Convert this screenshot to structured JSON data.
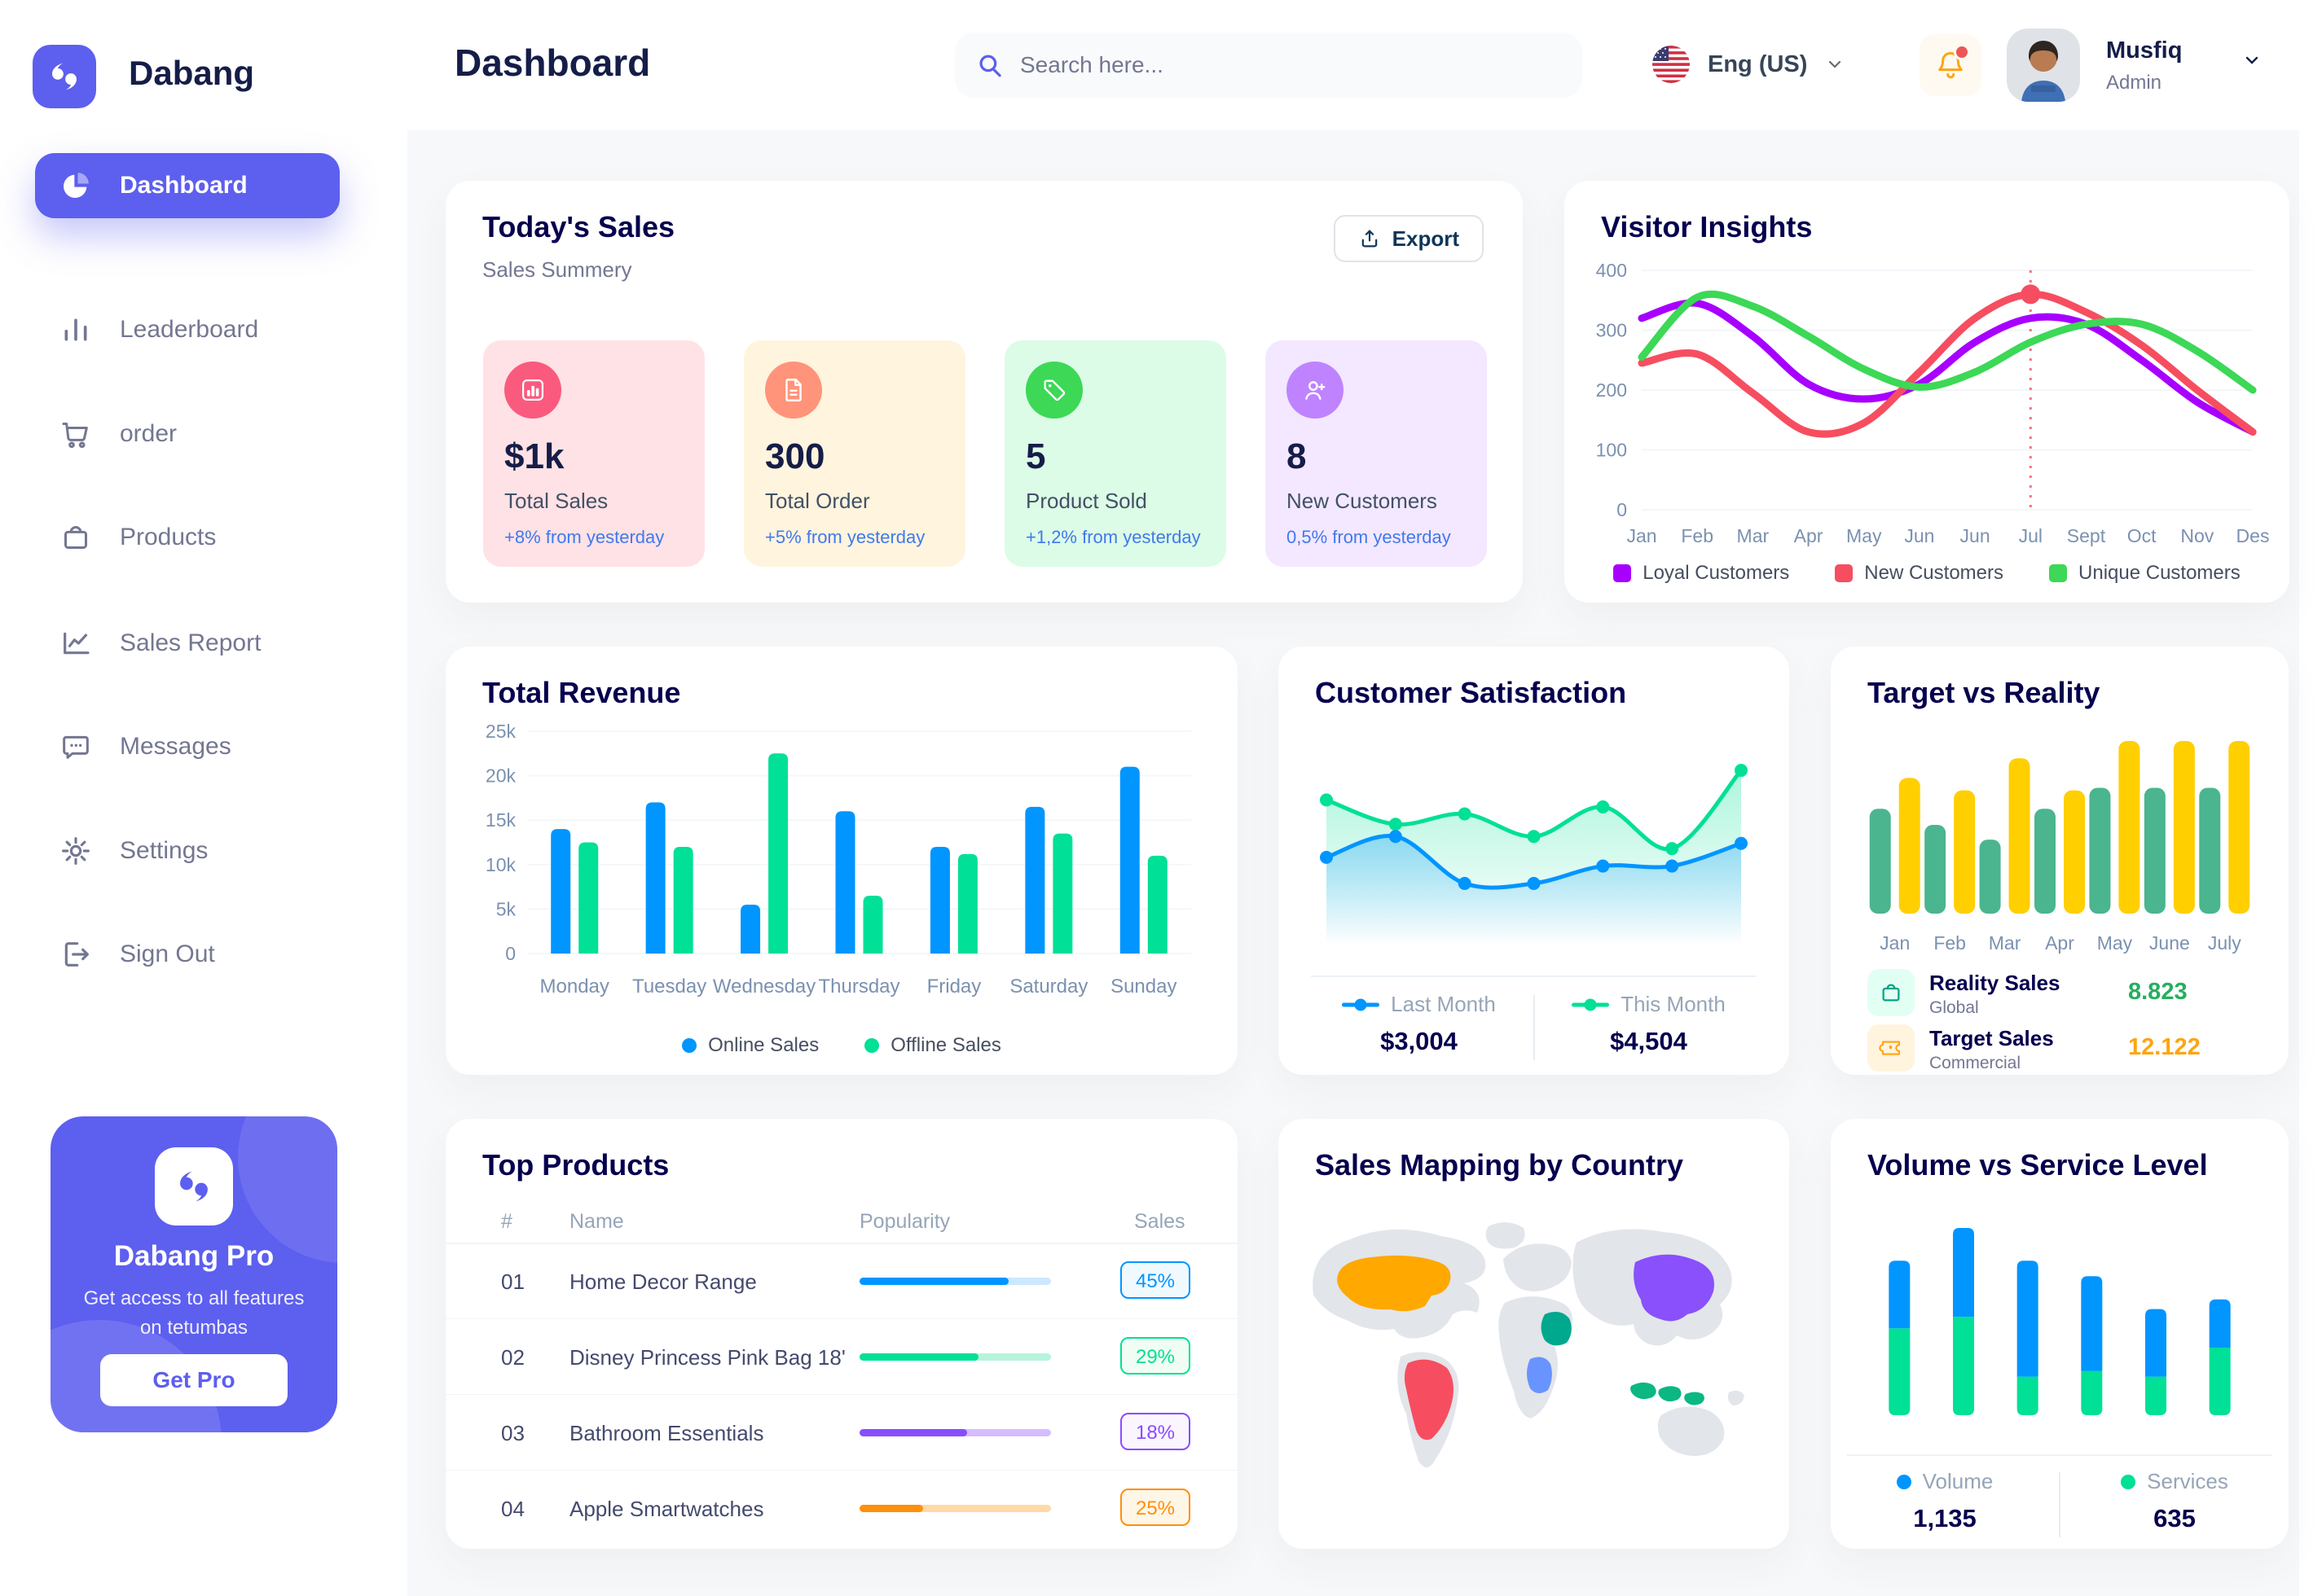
{
  "brand": {
    "name": "Dabang"
  },
  "header": {
    "title": "Dashboard",
    "search": {
      "placeholder": "Search here..."
    },
    "language": {
      "label": "Eng (US)"
    },
    "user": {
      "name": "Musfiq",
      "role": "Admin"
    }
  },
  "sidebar": {
    "items": [
      {
        "label": "Dashboard",
        "icon": "pie-chart-icon",
        "active": true
      },
      {
        "label": "Leaderboard",
        "icon": "bar-chart-icon",
        "active": false
      },
      {
        "label": "order",
        "icon": "cart-icon",
        "active": false
      },
      {
        "label": "Products",
        "icon": "bag-icon",
        "active": false
      },
      {
        "label": "Sales Report",
        "icon": "line-chart-icon",
        "active": false
      },
      {
        "label": "Messages",
        "icon": "message-icon",
        "active": false
      },
      {
        "label": "Settings",
        "icon": "gear-icon",
        "active": false
      },
      {
        "label": "Sign Out",
        "icon": "sign-out-icon",
        "active": false
      }
    ],
    "pro_card": {
      "title": "Dabang Pro",
      "subtitle": "Get access to all features on tetumbas",
      "button": "Get Pro"
    }
  },
  "today_sales": {
    "title": "Today's Sales",
    "subtitle": "Sales Summery",
    "export_button": "Export",
    "cards": [
      {
        "value": "$1k",
        "label": "Total Sales",
        "delta": "+8% from yesterday",
        "bg": "#FFE2E5",
        "icon_bg": "#FA5A7D",
        "icon": "stats-icon"
      },
      {
        "value": "300",
        "label": "Total Order",
        "delta": "+5% from yesterday",
        "bg": "#FFF4DE",
        "icon_bg": "#FF947A",
        "icon": "order-file-icon"
      },
      {
        "value": "5",
        "label": "Product Sold",
        "delta": "+1,2% from yesterday",
        "bg": "#DCFCE7",
        "icon_bg": "#3CD856",
        "icon": "tag-icon"
      },
      {
        "value": "8",
        "label": "New Customers",
        "delta": "0,5% from yesterday",
        "bg": "#F3E8FF",
        "icon_bg": "#BF83FF",
        "icon": "new-customer-icon"
      }
    ]
  },
  "chart_data": [
    {
      "id": "visitor_insights",
      "type": "line",
      "title": "Visitor Insights",
      "x": [
        "Jan",
        "Feb",
        "Mar",
        "Apr",
        "May",
        "Jun",
        "Jun",
        "Jul",
        "Sept",
        "Oct",
        "Nov",
        "Des"
      ],
      "ylim": [
        0,
        400
      ],
      "yticks": [
        0,
        100,
        200,
        300,
        400
      ],
      "legend_position": "bottom",
      "series": [
        {
          "name": "Loyal Customers",
          "color": "#A700FF",
          "values": [
            320,
            345,
            290,
            210,
            185,
            210,
            280,
            320,
            310,
            250,
            180,
            130
          ]
        },
        {
          "name": "New Customers",
          "color": "#F64E60",
          "values": [
            245,
            260,
            195,
            130,
            145,
            230,
            320,
            360,
            330,
            275,
            200,
            130
          ]
        },
        {
          "name": "Unique Customers",
          "color": "#3CD856",
          "values": [
            255,
            355,
            340,
            290,
            235,
            205,
            230,
            280,
            310,
            310,
            265,
            200
          ]
        }
      ],
      "annotation": {
        "x_index": 7,
        "label": "Jul",
        "series": "New Customers",
        "value": 360,
        "color": "#F64E60"
      }
    },
    {
      "id": "total_revenue",
      "type": "bar",
      "title": "Total Revenue",
      "categories": [
        "Monday",
        "Tuesday",
        "Wednesday",
        "Thursday",
        "Friday",
        "Saturday",
        "Sunday"
      ],
      "ylim": [
        0,
        25000
      ],
      "yticks": [
        0,
        5000,
        10000,
        15000,
        20000,
        25000
      ],
      "ytick_labels": [
        "0",
        "5k",
        "10k",
        "15k",
        "20k",
        "25k"
      ],
      "legend_position": "bottom",
      "series": [
        {
          "name": "Online Sales",
          "color": "#0095FF",
          "values": [
            14000,
            17000,
            5500,
            16000,
            12000,
            16500,
            21000
          ]
        },
        {
          "name": "Offline Sales",
          "color": "#00E096",
          "values": [
            12500,
            12000,
            22500,
            6500,
            11200,
            13500,
            11000
          ]
        }
      ]
    },
    {
      "id": "customer_satisfaction",
      "type": "area",
      "title": "Customer Satisfaction",
      "x": [
        1,
        2,
        3,
        4,
        5,
        6,
        7
      ],
      "ylim": [
        0,
        110
      ],
      "legend_position": "bottom",
      "series": [
        {
          "name": "Last Month",
          "total": "$3,004",
          "color": "#0095FF",
          "values": [
            45,
            57,
            30,
            30,
            40,
            40,
            53
          ]
        },
        {
          "name": "This Month",
          "total": "$4,504",
          "color": "#00E096",
          "values": [
            78,
            64,
            70,
            57,
            74,
            50,
            95
          ]
        }
      ]
    },
    {
      "id": "target_vs_reality",
      "type": "bar",
      "title": "Target vs Reality",
      "categories": [
        "Jan",
        "Feb",
        "Mar",
        "Apr",
        "May",
        "June",
        "July"
      ],
      "ylim": [
        0,
        14
      ],
      "series": [
        {
          "name": "Reality Sales",
          "color": "#4AB58E",
          "values": [
            8.5,
            7.2,
            6.0,
            8.5,
            10.2,
            10.2,
            10.2
          ]
        },
        {
          "name": "Target Sales",
          "color": "#FFCF00",
          "values": [
            11,
            10,
            12.6,
            10,
            14,
            14,
            14
          ]
        }
      ],
      "legend_rows": [
        {
          "label": "Reality Sales",
          "sublabel": "Global",
          "value": "8.823",
          "value_color": "#27AE60",
          "icon": "bag-icon",
          "icon_bg": "#E2FFF3",
          "icon_color": "#00A389"
        },
        {
          "label": "Target Sales",
          "sublabel": "Commercial",
          "value": "12.122",
          "value_color": "#FFA412",
          "icon": "ticket-icon",
          "icon_bg": "#FFF4DE",
          "icon_color": "#FFA412"
        }
      ]
    },
    {
      "id": "top_products",
      "type": "table",
      "title": "Top Products",
      "columns": [
        "#",
        "Name",
        "Popularity",
        "Sales"
      ],
      "rows": [
        {
          "num": "01",
          "name": "Home Decor Range",
          "popularity": 78,
          "sales": "45%",
          "color": "#0095FF",
          "track": "#CDE7FF",
          "badge_bg": "#F0F9FF"
        },
        {
          "num": "02",
          "name": "Disney Princess Pink Bag 18'",
          "popularity": 62,
          "sales": "29%",
          "color": "#00E096",
          "track": "#B6F4DC",
          "badge_bg": "#F0FDF4"
        },
        {
          "num": "03",
          "name": "Bathroom Essentials",
          "popularity": 56,
          "sales": "18%",
          "color": "#884DFF",
          "track": "#D5BDFF",
          "badge_bg": "#FBF5FF"
        },
        {
          "num": "04",
          "name": "Apple Smartwatches",
          "popularity": 33,
          "sales": "25%",
          "color": "#FF8F0D",
          "track": "#FFD9A6",
          "badge_bg": "#FEF6E6"
        }
      ]
    },
    {
      "id": "volume_service_level",
      "type": "stacked-bar",
      "title": "Volume vs Service Level",
      "categories": [
        "1",
        "2",
        "3",
        "4",
        "5",
        "6"
      ],
      "legend_position": "bottom",
      "series": [
        {
          "name": "Volume",
          "total": "1,135",
          "color": "#0095FF",
          "values": [
            35,
            46,
            60,
            49,
            35,
            25
          ]
        },
        {
          "name": "Services",
          "total": "635",
          "color": "#00E096",
          "values": [
            45,
            51,
            20,
            23,
            20,
            35
          ]
        }
      ]
    },
    {
      "id": "sales_mapping",
      "type": "map",
      "title": "Sales Mapping by Country",
      "countries": [
        {
          "name": "United States",
          "color": "#FFA800"
        },
        {
          "name": "Brazil",
          "color": "#F64E60"
        },
        {
          "name": "China",
          "color": "#8950FC"
        },
        {
          "name": "Saudi Arabia",
          "color": "#00A88E"
        },
        {
          "name": "Democratic Republic of Congo",
          "color": "#6993FF"
        },
        {
          "name": "Indonesia",
          "color": "#0BB783"
        }
      ]
    }
  ]
}
